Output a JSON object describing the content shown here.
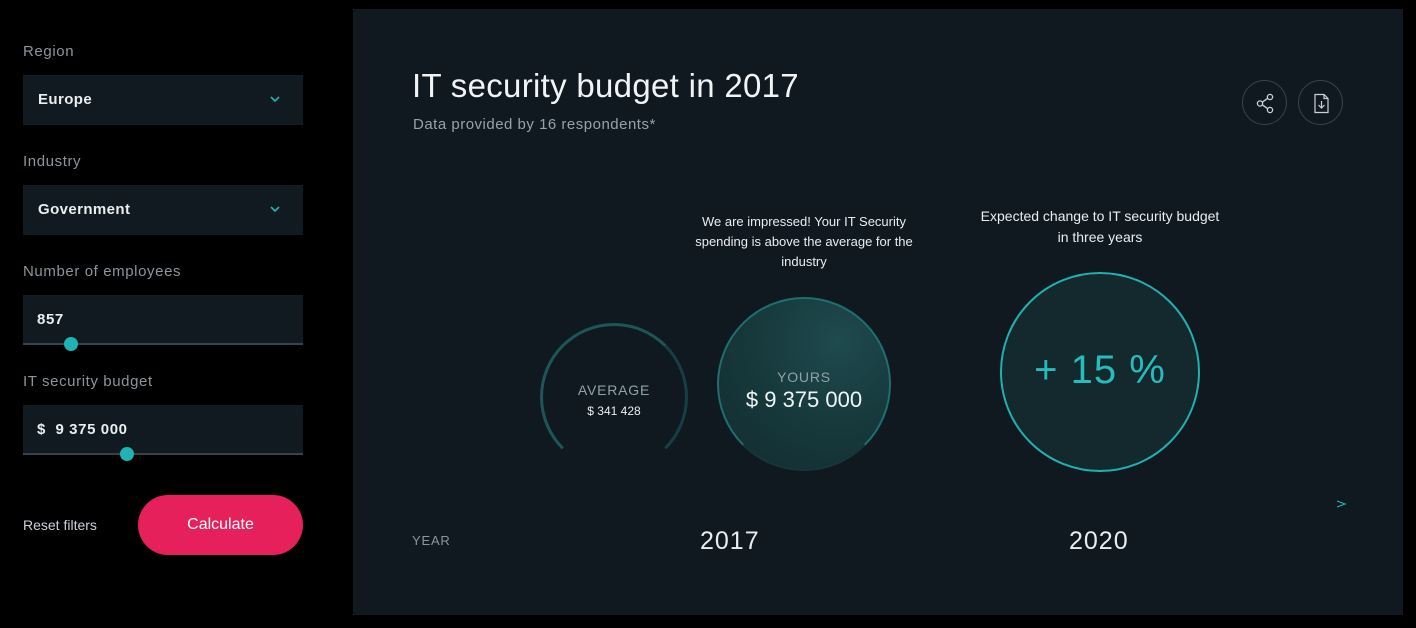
{
  "filters": {
    "region": {
      "label": "Region",
      "value": "Europe"
    },
    "industry": {
      "label": "Industry",
      "value": "Government"
    },
    "employees": {
      "label": "Number of employees",
      "value": "857",
      "slider_fraction": 0.17
    },
    "budget": {
      "label": "IT security budget",
      "value": "$  9 375 000",
      "slider_fraction": 0.37
    },
    "reset_label": "Reset filters",
    "calculate_label": "Calculate"
  },
  "panel": {
    "title": "IT security budget in 2017",
    "subtitle": "Data provided by 16 respondents*",
    "icons": [
      "share-icon",
      "download-icon"
    ],
    "impressed_note": "We are impressed! Your IT Security spending is above the average for the industry",
    "expected_note": "Expected change to IT security budget in three years",
    "average": {
      "label": "AVERAGE",
      "value": "$ 341 428"
    },
    "yours": {
      "label": "YOURS",
      "value": "$ 9 375 000"
    },
    "change": {
      "value": "+ 15 %"
    },
    "timeline": {
      "label": "YEAR",
      "years": [
        "2017",
        "2020"
      ]
    }
  },
  "colors": {
    "accent": "#1fb3b3",
    "cta": "#e5205a",
    "panel_bg": "#111920",
    "field_bg": "#111a21"
  }
}
